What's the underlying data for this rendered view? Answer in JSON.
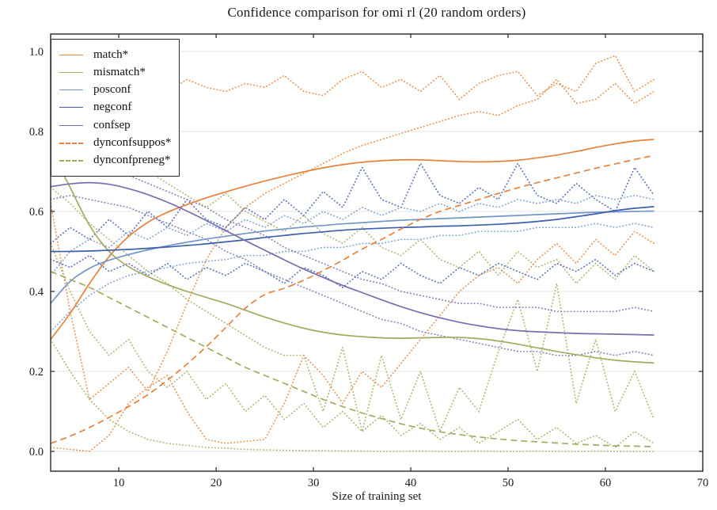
{
  "title": "Confidence comparison for omi rl (20 random orders)",
  "chart_data": {
    "type": "line",
    "title": "Confidence comparison for omi rl (20 random orders)",
    "xlabel": "Size of training set",
    "ylabel": "",
    "xlim": [
      3,
      70
    ],
    "ylim": [
      -0.05,
      1.045
    ],
    "xticks": [
      10,
      20,
      30,
      40,
      50,
      60,
      70
    ],
    "ytick_labels": [
      "0.0",
      "0.2",
      "0.4",
      "0.6",
      "0.8",
      "1.0"
    ],
    "yticks": [
      0.0,
      0.2,
      0.4,
      0.6,
      0.8,
      1.0
    ],
    "grid": "horizontal gridlines only",
    "legend_position": "upper left",
    "axis_color": "#262626",
    "grid_color": "#e4e4e4",
    "x": [
      3,
      5,
      7,
      9,
      11,
      13,
      15,
      17,
      19,
      21,
      23,
      25,
      27,
      29,
      31,
      33,
      35,
      37,
      39,
      41,
      43,
      45,
      47,
      49,
      51,
      53,
      55,
      57,
      59,
      61,
      63,
      65
    ],
    "series": [
      {
        "name": "match",
        "label": "match*",
        "color": "#e8823a",
        "style": "solid",
        "in_legend": true,
        "y": [
          0.28,
          0.345,
          0.42,
          0.487,
          0.537,
          0.573,
          0.598,
          0.617,
          0.634,
          0.649,
          0.663,
          0.676,
          0.688,
          0.699,
          0.709,
          0.717,
          0.723,
          0.727,
          0.729,
          0.729,
          0.727,
          0.725,
          0.724,
          0.725,
          0.728,
          0.734,
          0.741,
          0.75,
          0.76,
          0.769,
          0.776,
          0.78
        ]
      },
      {
        "name": "mismatch",
        "label": "mismatch*",
        "color": "#a6aa5f",
        "style": "solid",
        "in_legend": true,
        "y": [
          0.755,
          0.66,
          0.565,
          0.5,
          0.462,
          0.437,
          0.417,
          0.4,
          0.385,
          0.37,
          0.353,
          0.336,
          0.321,
          0.308,
          0.298,
          0.291,
          0.287,
          0.284,
          0.283,
          0.284,
          0.285,
          0.285,
          0.282,
          0.276,
          0.268,
          0.259,
          0.25,
          0.242,
          0.234,
          0.228,
          0.224,
          0.221
        ]
      },
      {
        "name": "posconf",
        "label": "posconf",
        "color": "#7396c8",
        "style": "solid",
        "in_legend": true,
        "y": [
          0.37,
          0.425,
          0.458,
          0.478,
          0.492,
          0.504,
          0.514,
          0.523,
          0.531,
          0.538,
          0.545,
          0.551,
          0.556,
          0.561,
          0.565,
          0.569,
          0.572,
          0.575,
          0.578,
          0.58,
          0.582,
          0.584,
          0.586,
          0.588,
          0.59,
          0.592,
          0.594,
          0.596,
          0.598,
          0.599,
          0.6,
          0.601
        ]
      },
      {
        "name": "negconf",
        "label": "negconf",
        "color": "#3e5fad",
        "style": "solid",
        "in_legend": true,
        "y": [
          0.5,
          0.5,
          0.501,
          0.503,
          0.505,
          0.508,
          0.511,
          0.515,
          0.519,
          0.524,
          0.529,
          0.535,
          0.54,
          0.545,
          0.549,
          0.553,
          0.556,
          0.558,
          0.56,
          0.561,
          0.563,
          0.564,
          0.566,
          0.568,
          0.571,
          0.575,
          0.58,
          0.587,
          0.594,
          0.602,
          0.608,
          0.612
        ]
      },
      {
        "name": "confsep",
        "label": "confsep",
        "color": "#7a6cae",
        "style": "solid",
        "in_legend": true,
        "y": [
          0.662,
          0.669,
          0.672,
          0.668,
          0.657,
          0.642,
          0.623,
          0.601,
          0.577,
          0.552,
          0.527,
          0.503,
          0.479,
          0.456,
          0.435,
          0.415,
          0.397,
          0.379,
          0.362,
          0.347,
          0.334,
          0.323,
          0.314,
          0.307,
          0.302,
          0.299,
          0.297,
          0.295,
          0.294,
          0.293,
          0.292,
          0.291
        ]
      },
      {
        "name": "dynconfsuppos",
        "label": "dynconfsuppos*",
        "color": "#e8823a",
        "style": "dashed",
        "in_legend": true,
        "y": [
          0.02,
          0.038,
          0.06,
          0.085,
          0.112,
          0.142,
          0.178,
          0.218,
          0.262,
          0.31,
          0.358,
          0.392,
          0.408,
          0.428,
          0.452,
          0.478,
          0.506,
          0.53,
          0.556,
          0.58,
          0.6,
          0.615,
          0.63,
          0.645,
          0.659,
          0.672,
          0.684,
          0.696,
          0.708,
          0.719,
          0.73,
          0.74
        ]
      },
      {
        "name": "dynconfpreneg",
        "label": "dynconfpreneg*",
        "color": "#a6aa5f",
        "style": "dashed",
        "in_legend": true,
        "y": [
          0.45,
          0.43,
          0.41,
          0.385,
          0.36,
          0.335,
          0.31,
          0.285,
          0.26,
          0.235,
          0.21,
          0.19,
          0.17,
          0.15,
          0.13,
          0.112,
          0.096,
          0.082,
          0.069,
          0.058,
          0.049,
          0.042,
          0.036,
          0.031,
          0.027,
          0.024,
          0.021,
          0.018,
          0.016,
          0.014,
          0.013,
          0.012
        ]
      },
      {
        "name": "match-upper-env",
        "label": "",
        "color": "#e8823a",
        "style": "dotted",
        "in_legend": false,
        "y": [
          0.84,
          0.86,
          0.88,
          0.9,
          0.92,
          0.93,
          0.9,
          0.93,
          0.91,
          0.9,
          0.92,
          0.91,
          0.94,
          0.9,
          0.89,
          0.93,
          0.95,
          0.91,
          0.93,
          0.9,
          0.94,
          0.88,
          0.92,
          0.94,
          0.95,
          0.89,
          0.92,
          0.9,
          0.97,
          0.99,
          0.9,
          0.93
        ]
      },
      {
        "name": "dynconfsuppos-upper-env",
        "label": "",
        "color": "#e8823a",
        "style": "dotted",
        "in_legend": false,
        "y": [
          0.62,
          0.35,
          0.13,
          0.17,
          0.21,
          0.15,
          0.25,
          0.37,
          0.48,
          0.56,
          0.61,
          0.645,
          0.67,
          0.695,
          0.72,
          0.745,
          0.765,
          0.78,
          0.795,
          0.81,
          0.825,
          0.84,
          0.85,
          0.84,
          0.865,
          0.88,
          0.93,
          0.87,
          0.88,
          0.92,
          0.87,
          0.9
        ]
      },
      {
        "name": "dynconfsuppos-lower-env",
        "label": "",
        "color": "#e8823a",
        "style": "dotted",
        "in_legend": false,
        "y": [
          0.01,
          0.005,
          0.0,
          0.04,
          0.12,
          0.16,
          0.19,
          0.1,
          0.03,
          0.02,
          0.025,
          0.03,
          0.12,
          0.24,
          0.19,
          0.12,
          0.2,
          0.16,
          0.22,
          0.28,
          0.34,
          0.4,
          0.44,
          0.46,
          0.42,
          0.48,
          0.52,
          0.47,
          0.53,
          0.49,
          0.55,
          0.52
        ]
      },
      {
        "name": "mismatch-upper-env",
        "label": "",
        "color": "#a6aa5f",
        "style": "dotted",
        "in_legend": false,
        "y": [
          0.95,
          0.88,
          0.82,
          0.77,
          0.73,
          0.7,
          0.67,
          0.64,
          0.61,
          0.645,
          0.6,
          0.575,
          0.55,
          0.59,
          0.545,
          0.52,
          0.56,
          0.51,
          0.49,
          0.53,
          0.48,
          0.46,
          0.5,
          0.44,
          0.5,
          0.46,
          0.48,
          0.42,
          0.47,
          0.43,
          0.49,
          0.45
        ]
      },
      {
        "name": "mismatch-lower-env",
        "label": "",
        "color": "#a6aa5f",
        "style": "dotted",
        "in_legend": false,
        "y": [
          0.52,
          0.4,
          0.3,
          0.24,
          0.28,
          0.2,
          0.16,
          0.2,
          0.13,
          0.17,
          0.1,
          0.14,
          0.08,
          0.12,
          0.06,
          0.1,
          0.05,
          0.09,
          0.04,
          0.07,
          0.03,
          0.06,
          0.02,
          0.05,
          0.08,
          0.03,
          0.06,
          0.02,
          0.04,
          0.01,
          0.05,
          0.02
        ]
      },
      {
        "name": "dynconfpreneg-upper-env",
        "label": "",
        "color": "#a6aa5f",
        "style": "dotted",
        "in_legend": false,
        "y": [
          0.66,
          0.62,
          0.57,
          0.53,
          0.49,
          0.45,
          0.42,
          0.38,
          0.35,
          0.32,
          0.29,
          0.26,
          0.24,
          0.24,
          0.1,
          0.26,
          0.05,
          0.24,
          0.08,
          0.2,
          0.05,
          0.16,
          0.1,
          0.25,
          0.38,
          0.2,
          0.42,
          0.12,
          0.28,
          0.1,
          0.2,
          0.08
        ]
      },
      {
        "name": "dynconfpreneg-lower-env",
        "label": "",
        "color": "#a6aa5f",
        "style": "dotted",
        "in_legend": false,
        "y": [
          0.28,
          0.2,
          0.13,
          0.08,
          0.05,
          0.03,
          0.02,
          0.015,
          0.01,
          0.008,
          0.005,
          0.004,
          0.003,
          0.002,
          0.002,
          0.001,
          0.001,
          0,
          0,
          0.001,
          0,
          0,
          0.001,
          0,
          0,
          0.001,
          0,
          0,
          0.001,
          0,
          0,
          0
        ]
      },
      {
        "name": "negconf-upper-env",
        "label": "",
        "color": "#3e5fad",
        "style": "dotted",
        "in_legend": false,
        "y": [
          0.52,
          0.56,
          0.53,
          0.58,
          0.54,
          0.6,
          0.56,
          0.63,
          0.58,
          0.56,
          0.61,
          0.58,
          0.63,
          0.59,
          0.65,
          0.61,
          0.71,
          0.63,
          0.61,
          0.72,
          0.64,
          0.62,
          0.66,
          0.63,
          0.72,
          0.64,
          0.62,
          0.67,
          0.63,
          0.6,
          0.71,
          0.64
        ]
      },
      {
        "name": "negconf-lower-env",
        "label": "",
        "color": "#3e5fad",
        "style": "dotted",
        "in_legend": false,
        "y": [
          0.48,
          0.46,
          0.49,
          0.45,
          0.47,
          0.44,
          0.47,
          0.43,
          0.46,
          0.44,
          0.47,
          0.45,
          0.42,
          0.46,
          0.44,
          0.41,
          0.45,
          0.43,
          0.47,
          0.44,
          0.42,
          0.46,
          0.44,
          0.47,
          0.45,
          0.43,
          0.47,
          0.45,
          0.48,
          0.44,
          0.47,
          0.45
        ]
      },
      {
        "name": "posconf-upper-env",
        "label": "",
        "color": "#7396c8",
        "style": "dotted",
        "in_legend": false,
        "y": [
          0.44,
          0.5,
          0.53,
          0.51,
          0.55,
          0.53,
          0.56,
          0.54,
          0.57,
          0.55,
          0.58,
          0.56,
          0.59,
          0.57,
          0.6,
          0.58,
          0.61,
          0.59,
          0.61,
          0.6,
          0.62,
          0.6,
          0.62,
          0.61,
          0.63,
          0.62,
          0.63,
          0.62,
          0.64,
          0.63,
          0.64,
          0.63
        ]
      },
      {
        "name": "posconf-lower-env",
        "label": "",
        "color": "#7396c8",
        "style": "dotted",
        "in_legend": false,
        "y": [
          0.3,
          0.35,
          0.39,
          0.42,
          0.44,
          0.45,
          0.46,
          0.47,
          0.475,
          0.48,
          0.49,
          0.49,
          0.5,
          0.5,
          0.51,
          0.51,
          0.52,
          0.52,
          0.53,
          0.53,
          0.54,
          0.54,
          0.55,
          0.55,
          0.55,
          0.56,
          0.56,
          0.56,
          0.57,
          0.56,
          0.57,
          0.56
        ]
      },
      {
        "name": "confsep-upper-env",
        "label": "",
        "color": "#7a6cae",
        "style": "dotted",
        "in_legend": false,
        "y": [
          0.69,
          0.7,
          0.71,
          0.7,
          0.69,
          0.67,
          0.65,
          0.63,
          0.61,
          0.58,
          0.56,
          0.54,
          0.51,
          0.49,
          0.47,
          0.45,
          0.43,
          0.42,
          0.4,
          0.39,
          0.38,
          0.37,
          0.37,
          0.36,
          0.36,
          0.36,
          0.35,
          0.35,
          0.35,
          0.35,
          0.36,
          0.35
        ]
      },
      {
        "name": "confsep-lower-env",
        "label": "",
        "color": "#7a6cae",
        "style": "dotted",
        "in_legend": false,
        "y": [
          0.63,
          0.64,
          0.63,
          0.62,
          0.61,
          0.59,
          0.57,
          0.55,
          0.53,
          0.5,
          0.48,
          0.45,
          0.43,
          0.41,
          0.39,
          0.37,
          0.35,
          0.33,
          0.32,
          0.3,
          0.29,
          0.28,
          0.27,
          0.26,
          0.25,
          0.25,
          0.24,
          0.24,
          0.25,
          0.24,
          0.25,
          0.24
        ]
      }
    ]
  }
}
